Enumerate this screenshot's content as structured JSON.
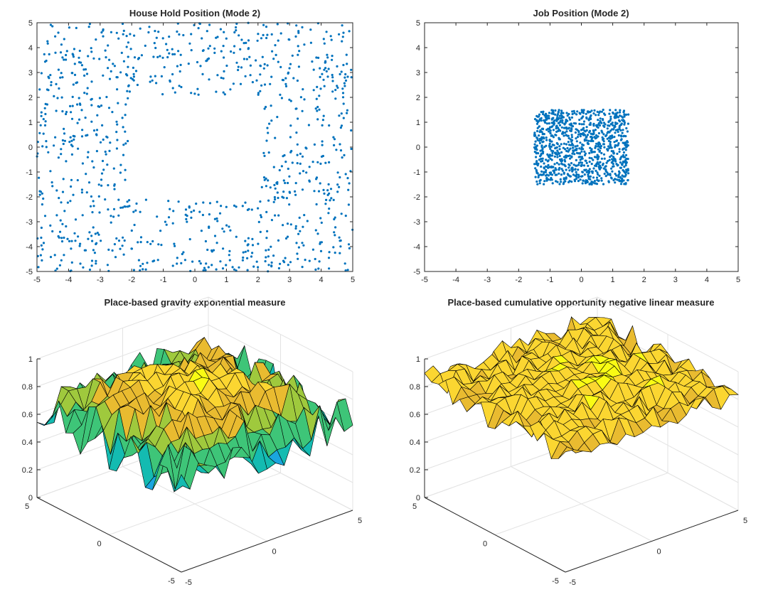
{
  "figure": {
    "colors": {
      "scatter": "#0072BD",
      "axis": "#262626",
      "grid": "#e3e3e3",
      "edge": "#000000"
    },
    "colormap": [
      "#3E26A8",
      "#4743F7",
      "#2C7EF9",
      "#1AA6DF",
      "#14BBB1",
      "#3EC578",
      "#9FC93D",
      "#E9BB30",
      "#FBD631",
      "#F9FB14"
    ]
  },
  "chart_data": [
    {
      "type": "scatter",
      "title": "House Hold Position (Mode 2)",
      "xlabel": "",
      "ylabel": "",
      "xlim": [
        -5,
        5
      ],
      "ylim": [
        -5,
        5
      ],
      "xticks": [
        "-5",
        "-4",
        "-3",
        "-2",
        "-1",
        "0",
        "1",
        "2",
        "3",
        "4",
        "5"
      ],
      "yticks": [
        "-5",
        "-4",
        "-3",
        "-2",
        "-1",
        "0",
        "1",
        "2",
        "3",
        "4",
        "5"
      ],
      "grid": false,
      "distribution": {
        "n_points": 1000,
        "region": "uniform over [-5,5] x [-5,5] excluding the central hole",
        "hole_x": [
          -1.5,
          1.5
        ],
        "hole_y": [
          -1.5,
          1.5
        ],
        "hole_rounding": 0.6
      }
    },
    {
      "type": "scatter",
      "title": "Job Position (Mode 2)",
      "xlabel": "",
      "ylabel": "",
      "xlim": [
        -5,
        5
      ],
      "ylim": [
        -5,
        5
      ],
      "xticks": [
        "-5",
        "-4",
        "-3",
        "-2",
        "-1",
        "0",
        "1",
        "2",
        "3",
        "4",
        "5"
      ],
      "yticks": [
        "-5",
        "-4",
        "-3",
        "-2",
        "-1",
        "0",
        "1",
        "2",
        "3",
        "4",
        "5"
      ],
      "grid": false,
      "distribution": {
        "n_points": 1000,
        "region": "uniform over square",
        "x_range": [
          -1.5,
          1.5
        ],
        "y_range": [
          -1.5,
          1.5
        ]
      }
    },
    {
      "type": "surface",
      "title": "Place-based gravity exponential measure",
      "xlim": [
        -5,
        5
      ],
      "ylim": [
        -5,
        5
      ],
      "zlim": [
        0,
        1
      ],
      "xticks": [
        "-5",
        "0",
        "5"
      ],
      "yticks": [
        "-5",
        "0",
        "5"
      ],
      "zticks": [
        "0",
        "0.2",
        "0.4",
        "0.6",
        "0.8",
        "1"
      ],
      "grid": true,
      "surface": {
        "grid_n": 21,
        "center_value": 0.92,
        "edge_value": 0.62,
        "noise_center": 0.05,
        "noise_edge": 0.17,
        "z_range_observed": [
          0.25,
          1.0
        ]
      }
    },
    {
      "type": "surface",
      "title": "Place-based cumulative opportunity negative linear measure",
      "xlim": [
        -5,
        5
      ],
      "ylim": [
        -5,
        5
      ],
      "zlim": [
        0,
        1
      ],
      "xticks": [
        "-5",
        "0",
        "5"
      ],
      "yticks": [
        "-5",
        "0",
        "5"
      ],
      "zticks": [
        "0",
        "0.2",
        "0.4",
        "0.6",
        "0.8",
        "1"
      ],
      "grid": true,
      "surface": {
        "grid_n": 21,
        "center_value": 0.93,
        "edge_value": 0.84,
        "noise_center": 0.04,
        "noise_edge": 0.09,
        "z_range_observed": [
          0.5,
          0.98
        ]
      }
    }
  ]
}
